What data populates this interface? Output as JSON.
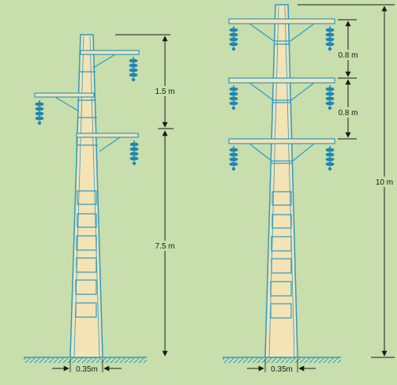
{
  "colors": {
    "background": "#c8deac",
    "pole_fill": "#f3e3b5",
    "line": "#2b9cc4",
    "insulator": "#1f86b4",
    "dimension": "#1a1a1a"
  },
  "left_pole": {
    "dim_upper": "1.5 m",
    "dim_lower": "7.5 m",
    "dim_base": "0.35m"
  },
  "right_pole": {
    "dim_gap_1": "0.8 m",
    "dim_gap_2": "0.8 m",
    "dim_total": "10 m",
    "dim_base": "0.35m"
  }
}
